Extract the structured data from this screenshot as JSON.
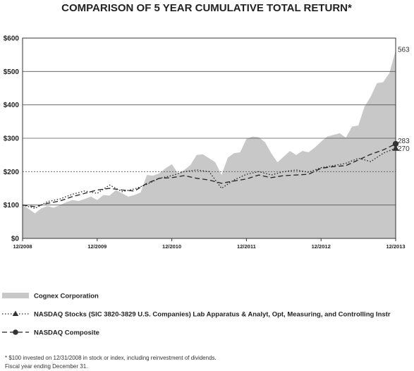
{
  "chart_data": {
    "type": "area",
    "title": "COMPARISON OF 5 YEAR CUMULATIVE TOTAL RETURN*",
    "xlabel": "",
    "ylabel": "",
    "ylim": [
      0,
      600
    ],
    "y_ticks": [
      0,
      100,
      200,
      300,
      400,
      500,
      600
    ],
    "y_tick_labels": [
      "$0",
      "$100",
      "$200",
      "$300",
      "$400",
      "$500",
      "$600"
    ],
    "x_range": [
      2008.917,
      2013.917
    ],
    "x_ticks": [
      2008.917,
      2009.917,
      2010.917,
      2011.917,
      2012.917,
      2013.917
    ],
    "x_tick_labels": [
      "12/2008",
      "12/2009",
      "12/2010",
      "12/2011",
      "12/2012",
      "12/2013"
    ],
    "reference_line": {
      "y": 200,
      "style": "dotted"
    },
    "grid": "horizontal",
    "series": [
      {
        "name": "Cognex Corporation",
        "style": "area",
        "color": "#c8c8c8",
        "x": [
          2008.917,
          2009.0,
          2009.083,
          2009.167,
          2009.25,
          2009.333,
          2009.417,
          2009.5,
          2009.583,
          2009.667,
          2009.75,
          2009.833,
          2009.917,
          2010.0,
          2010.083,
          2010.167,
          2010.25,
          2010.333,
          2010.417,
          2010.5,
          2010.583,
          2010.667,
          2010.75,
          2010.833,
          2010.917,
          2011.0,
          2011.083,
          2011.167,
          2011.25,
          2011.333,
          2011.417,
          2011.5,
          2011.583,
          2011.667,
          2011.75,
          2011.833,
          2011.917,
          2012.0,
          2012.083,
          2012.167,
          2012.25,
          2012.333,
          2012.417,
          2012.5,
          2012.583,
          2012.667,
          2012.75,
          2012.833,
          2012.917,
          2013.0,
          2013.083,
          2013.167,
          2013.25,
          2013.333,
          2013.417,
          2013.5,
          2013.583,
          2013.667,
          2013.75,
          2013.833,
          2013.917
        ],
        "values": [
          100,
          88,
          75,
          90,
          97,
          92,
          100,
          108,
          115,
          112,
          118,
          125,
          115,
          130,
          128,
          145,
          135,
          125,
          130,
          138,
          190,
          188,
          195,
          210,
          222,
          195,
          205,
          220,
          250,
          252,
          240,
          228,
          190,
          242,
          255,
          258,
          298,
          305,
          303,
          288,
          255,
          228,
          245,
          262,
          250,
          262,
          258,
          272,
          290,
          305,
          310,
          315,
          302,
          335,
          338,
          395,
          425,
          465,
          468,
          495,
          563
        ]
      },
      {
        "name": "NASDAQ Stocks  (SIC 3820-3829 U.S. Companies) Lab Apparatus & Analyt, Opt, Measuring, and Controlling Instr",
        "style": "dotted",
        "color": "#222222",
        "marker": "triangle",
        "x": [
          2008.917,
          2009.083,
          2009.25,
          2009.417,
          2009.583,
          2009.75,
          2009.917,
          2010.083,
          2010.25,
          2010.417,
          2010.583,
          2010.75,
          2010.917,
          2011.083,
          2011.25,
          2011.417,
          2011.583,
          2011.75,
          2011.917,
          2012.083,
          2012.25,
          2012.417,
          2012.583,
          2012.75,
          2012.917,
          2013.083,
          2013.25,
          2013.417,
          2013.583,
          2013.75,
          2013.917
        ],
        "values": [
          100,
          90,
          110,
          118,
          132,
          142,
          135,
          160,
          140,
          148,
          162,
          180,
          188,
          200,
          205,
          200,
          150,
          175,
          192,
          200,
          190,
          200,
          205,
          198,
          212,
          218,
          225,
          240,
          230,
          255,
          270
        ]
      },
      {
        "name": "NASDAQ Composite",
        "style": "dashed",
        "color": "#222222",
        "marker": "circle",
        "x": [
          2008.917,
          2009.083,
          2009.25,
          2009.417,
          2009.583,
          2009.75,
          2009.917,
          2010.083,
          2010.25,
          2010.417,
          2010.583,
          2010.75,
          2010.917,
          2011.083,
          2011.25,
          2011.417,
          2011.583,
          2011.75,
          2011.917,
          2012.083,
          2012.25,
          2012.417,
          2012.583,
          2012.75,
          2012.917,
          2013.083,
          2013.25,
          2013.417,
          2013.583,
          2013.75,
          2013.917
        ],
        "values": [
          100,
          95,
          105,
          112,
          125,
          135,
          145,
          150,
          145,
          142,
          165,
          180,
          182,
          188,
          180,
          175,
          165,
          172,
          178,
          190,
          182,
          188,
          190,
          192,
          210,
          215,
          218,
          235,
          252,
          265,
          283
        ]
      }
    ],
    "end_labels": [
      {
        "series": 0,
        "text": "563"
      },
      {
        "series": 2,
        "text": "283"
      },
      {
        "series": 1,
        "text": "270"
      }
    ],
    "legend": {
      "placement": "bottom",
      "items": [
        {
          "series": 0,
          "label": "Cognex Corporation"
        },
        {
          "series": 1,
          "label": "NASDAQ Stocks  (SIC 3820-3829 U.S. Companies) Lab Apparatus & Analyt, Opt, Measuring, and Controlling Instr"
        },
        {
          "series": 2,
          "label": "NASDAQ Composite"
        }
      ]
    },
    "footnotes": [
      "* $100 invested on 12/31/2008 in stock or index, including reinvestment of dividends.",
      "Fiscal year ending December 31."
    ]
  }
}
